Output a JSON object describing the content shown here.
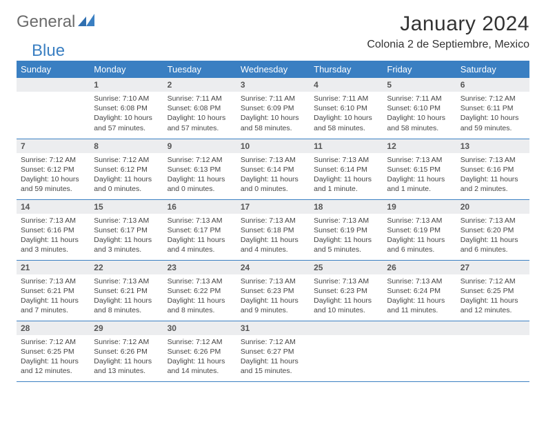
{
  "brand": {
    "part1": "General",
    "part2": "Blue"
  },
  "title": "January 2024",
  "location": "Colonia 2 de Septiembre, Mexico",
  "colors": {
    "header_bg": "#3a7fc2",
    "header_fg": "#ffffff",
    "daybar_bg": "#ecedef",
    "border": "#3a7fc2",
    "text": "#333333",
    "brand_gray": "#6b6b6b",
    "brand_blue": "#3a7fc2"
  },
  "weekdays": [
    "Sunday",
    "Monday",
    "Tuesday",
    "Wednesday",
    "Thursday",
    "Friday",
    "Saturday"
  ],
  "weeks": [
    [
      {
        "day": "",
        "lines": []
      },
      {
        "day": "1",
        "lines": [
          "Sunrise: 7:10 AM",
          "Sunset: 6:08 PM",
          "Daylight: 10 hours and 57 minutes."
        ]
      },
      {
        "day": "2",
        "lines": [
          "Sunrise: 7:11 AM",
          "Sunset: 6:08 PM",
          "Daylight: 10 hours and 57 minutes."
        ]
      },
      {
        "day": "3",
        "lines": [
          "Sunrise: 7:11 AM",
          "Sunset: 6:09 PM",
          "Daylight: 10 hours and 58 minutes."
        ]
      },
      {
        "day": "4",
        "lines": [
          "Sunrise: 7:11 AM",
          "Sunset: 6:10 PM",
          "Daylight: 10 hours and 58 minutes."
        ]
      },
      {
        "day": "5",
        "lines": [
          "Sunrise: 7:11 AM",
          "Sunset: 6:10 PM",
          "Daylight: 10 hours and 58 minutes."
        ]
      },
      {
        "day": "6",
        "lines": [
          "Sunrise: 7:12 AM",
          "Sunset: 6:11 PM",
          "Daylight: 10 hours and 59 minutes."
        ]
      }
    ],
    [
      {
        "day": "7",
        "lines": [
          "Sunrise: 7:12 AM",
          "Sunset: 6:12 PM",
          "Daylight: 10 hours and 59 minutes."
        ]
      },
      {
        "day": "8",
        "lines": [
          "Sunrise: 7:12 AM",
          "Sunset: 6:12 PM",
          "Daylight: 11 hours and 0 minutes."
        ]
      },
      {
        "day": "9",
        "lines": [
          "Sunrise: 7:12 AM",
          "Sunset: 6:13 PM",
          "Daylight: 11 hours and 0 minutes."
        ]
      },
      {
        "day": "10",
        "lines": [
          "Sunrise: 7:13 AM",
          "Sunset: 6:14 PM",
          "Daylight: 11 hours and 0 minutes."
        ]
      },
      {
        "day": "11",
        "lines": [
          "Sunrise: 7:13 AM",
          "Sunset: 6:14 PM",
          "Daylight: 11 hours and 1 minute."
        ]
      },
      {
        "day": "12",
        "lines": [
          "Sunrise: 7:13 AM",
          "Sunset: 6:15 PM",
          "Daylight: 11 hours and 1 minute."
        ]
      },
      {
        "day": "13",
        "lines": [
          "Sunrise: 7:13 AM",
          "Sunset: 6:16 PM",
          "Daylight: 11 hours and 2 minutes."
        ]
      }
    ],
    [
      {
        "day": "14",
        "lines": [
          "Sunrise: 7:13 AM",
          "Sunset: 6:16 PM",
          "Daylight: 11 hours and 3 minutes."
        ]
      },
      {
        "day": "15",
        "lines": [
          "Sunrise: 7:13 AM",
          "Sunset: 6:17 PM",
          "Daylight: 11 hours and 3 minutes."
        ]
      },
      {
        "day": "16",
        "lines": [
          "Sunrise: 7:13 AM",
          "Sunset: 6:17 PM",
          "Daylight: 11 hours and 4 minutes."
        ]
      },
      {
        "day": "17",
        "lines": [
          "Sunrise: 7:13 AM",
          "Sunset: 6:18 PM",
          "Daylight: 11 hours and 4 minutes."
        ]
      },
      {
        "day": "18",
        "lines": [
          "Sunrise: 7:13 AM",
          "Sunset: 6:19 PM",
          "Daylight: 11 hours and 5 minutes."
        ]
      },
      {
        "day": "19",
        "lines": [
          "Sunrise: 7:13 AM",
          "Sunset: 6:19 PM",
          "Daylight: 11 hours and 6 minutes."
        ]
      },
      {
        "day": "20",
        "lines": [
          "Sunrise: 7:13 AM",
          "Sunset: 6:20 PM",
          "Daylight: 11 hours and 6 minutes."
        ]
      }
    ],
    [
      {
        "day": "21",
        "lines": [
          "Sunrise: 7:13 AM",
          "Sunset: 6:21 PM",
          "Daylight: 11 hours and 7 minutes."
        ]
      },
      {
        "day": "22",
        "lines": [
          "Sunrise: 7:13 AM",
          "Sunset: 6:21 PM",
          "Daylight: 11 hours and 8 minutes."
        ]
      },
      {
        "day": "23",
        "lines": [
          "Sunrise: 7:13 AM",
          "Sunset: 6:22 PM",
          "Daylight: 11 hours and 8 minutes."
        ]
      },
      {
        "day": "24",
        "lines": [
          "Sunrise: 7:13 AM",
          "Sunset: 6:23 PM",
          "Daylight: 11 hours and 9 minutes."
        ]
      },
      {
        "day": "25",
        "lines": [
          "Sunrise: 7:13 AM",
          "Sunset: 6:23 PM",
          "Daylight: 11 hours and 10 minutes."
        ]
      },
      {
        "day": "26",
        "lines": [
          "Sunrise: 7:13 AM",
          "Sunset: 6:24 PM",
          "Daylight: 11 hours and 11 minutes."
        ]
      },
      {
        "day": "27",
        "lines": [
          "Sunrise: 7:12 AM",
          "Sunset: 6:25 PM",
          "Daylight: 11 hours and 12 minutes."
        ]
      }
    ],
    [
      {
        "day": "28",
        "lines": [
          "Sunrise: 7:12 AM",
          "Sunset: 6:25 PM",
          "Daylight: 11 hours and 12 minutes."
        ]
      },
      {
        "day": "29",
        "lines": [
          "Sunrise: 7:12 AM",
          "Sunset: 6:26 PM",
          "Daylight: 11 hours and 13 minutes."
        ]
      },
      {
        "day": "30",
        "lines": [
          "Sunrise: 7:12 AM",
          "Sunset: 6:26 PM",
          "Daylight: 11 hours and 14 minutes."
        ]
      },
      {
        "day": "31",
        "lines": [
          "Sunrise: 7:12 AM",
          "Sunset: 6:27 PM",
          "Daylight: 11 hours and 15 minutes."
        ]
      },
      {
        "day": "",
        "lines": []
      },
      {
        "day": "",
        "lines": []
      },
      {
        "day": "",
        "lines": []
      }
    ]
  ]
}
